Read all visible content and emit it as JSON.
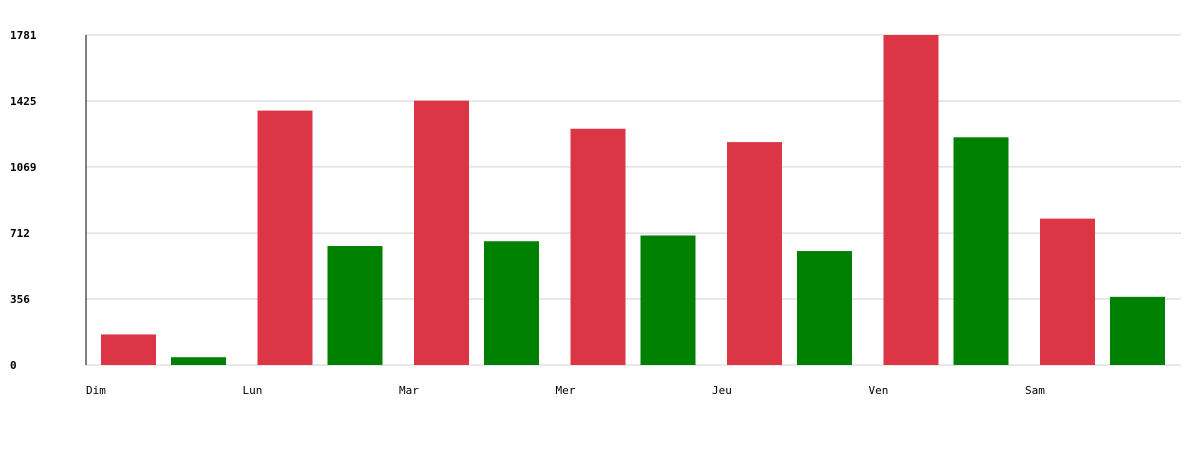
{
  "chart_data": {
    "type": "bar",
    "categories": [
      "Dim",
      "Lun",
      "Mar",
      "Mer",
      "Jeu",
      "Ven",
      "Sam"
    ],
    "series": [
      {
        "color": "#dc3545",
        "values": [
          165,
          1373,
          1427,
          1275,
          1203,
          1781,
          790
        ]
      },
      {
        "color": "#008000",
        "values": [
          42,
          642,
          668,
          699,
          615,
          1229,
          368
        ]
      }
    ],
    "y_ticks": [
      "0",
      "356",
      "712",
      "1069",
      "1425",
      "1781"
    ],
    "ylim": [
      0,
      1781
    ],
    "grid": true,
    "legend": "none",
    "title": "",
    "xlabel": "",
    "ylabel": ""
  }
}
